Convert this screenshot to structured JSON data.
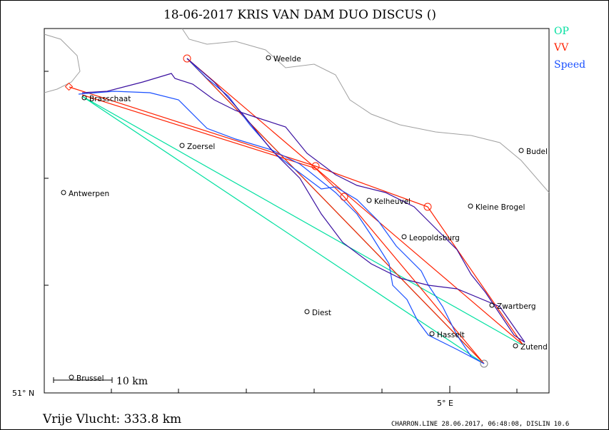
{
  "title": "18-06-2017    KRIS VAN DAM    DUO DISCUS ()",
  "legend": [
    {
      "label": "OP",
      "color": "#00e0a0"
    },
    {
      "label": "VV",
      "color": "#ff2000"
    },
    {
      "label": "Speed",
      "color": "#1a50ff"
    }
  ],
  "axes": {
    "y_label": "51° N",
    "x_label": "5° E"
  },
  "scale_bar": {
    "label": "10 km"
  },
  "places": [
    {
      "name": "Weelde"
    },
    {
      "name": "Brasschaat"
    },
    {
      "name": "Zoersel"
    },
    {
      "name": "Budel"
    },
    {
      "name": "Antwerpen"
    },
    {
      "name": "Kelheuvel"
    },
    {
      "name": "Kleine Brogel"
    },
    {
      "name": "Leopoldsburg"
    },
    {
      "name": "Zwartberg"
    },
    {
      "name": "Diest"
    },
    {
      "name": "Hasselt"
    },
    {
      "name": "Zutend"
    },
    {
      "name": "Brussel"
    }
  ],
  "distance_label": "Vrije Vlucht:  333.8 km",
  "footer": "CHARRON.LINE 28.06.2017, 06:48:08, DISLIN 10.6",
  "track_colors": {
    "climb": "#3a10a0",
    "glide": "#1a50ff",
    "border": "#a0a0a0"
  }
}
